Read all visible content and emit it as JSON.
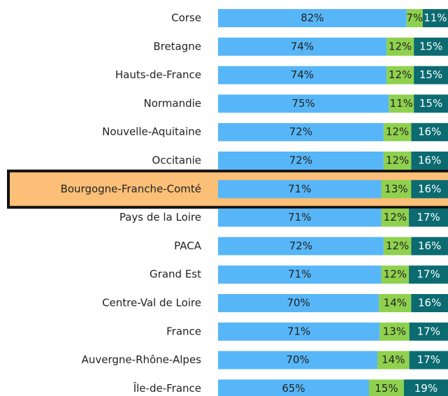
{
  "chart_data": {
    "type": "stacked_bar_100",
    "orientation": "horizontal",
    "categories": [
      "Corse",
      "Bretagne",
      "Hauts-de-France",
      "Normandie",
      "Nouvelle-Aquitaine",
      "Occitanie",
      "Bourgogne-Franche-Comté",
      "Pays de la Loire",
      "PACA",
      "Grand Est",
      "Centre-Val de Loire",
      "France",
      "Auvergne-Rhône-Alpes",
      "Île-de-France"
    ],
    "highlight_index": 6,
    "highlight_color": "#fbbf77",
    "series": [
      {
        "color": "#57b6f7",
        "label_color": "#222222",
        "values": [
          82,
          74,
          74,
          75,
          72,
          72,
          71,
          71,
          72,
          71,
          70,
          71,
          70,
          65
        ],
        "value_labels": [
          "82%",
          "74%",
          "74%",
          "75%",
          "72%",
          "72%",
          "71%",
          "71%",
          "72%",
          "71%",
          "70%",
          "71%",
          "70%",
          "65%"
        ]
      },
      {
        "color": "#8fd14f",
        "label_color": "#222222",
        "values": [
          7,
          12,
          12,
          11,
          12,
          12,
          13,
          12,
          12,
          12,
          14,
          13,
          14,
          15
        ],
        "value_labels": [
          "7%",
          "12%",
          "12%",
          "11%",
          "12%",
          "12%",
          "13%",
          "12%",
          "12%",
          "12%",
          "14%",
          "13%",
          "14%",
          "15%"
        ]
      },
      {
        "color": "#0b6b70",
        "label_color": "#ffffff",
        "values": [
          11,
          15,
          15,
          15,
          16,
          16,
          16,
          17,
          16,
          17,
          16,
          17,
          17,
          19
        ],
        "value_labels": [
          "11%",
          "15%",
          "15%",
          "15%",
          "16%",
          "16%",
          "16%",
          "17%",
          "16%",
          "17%",
          "16%",
          "17%",
          "17%",
          "19%"
        ]
      }
    ]
  }
}
